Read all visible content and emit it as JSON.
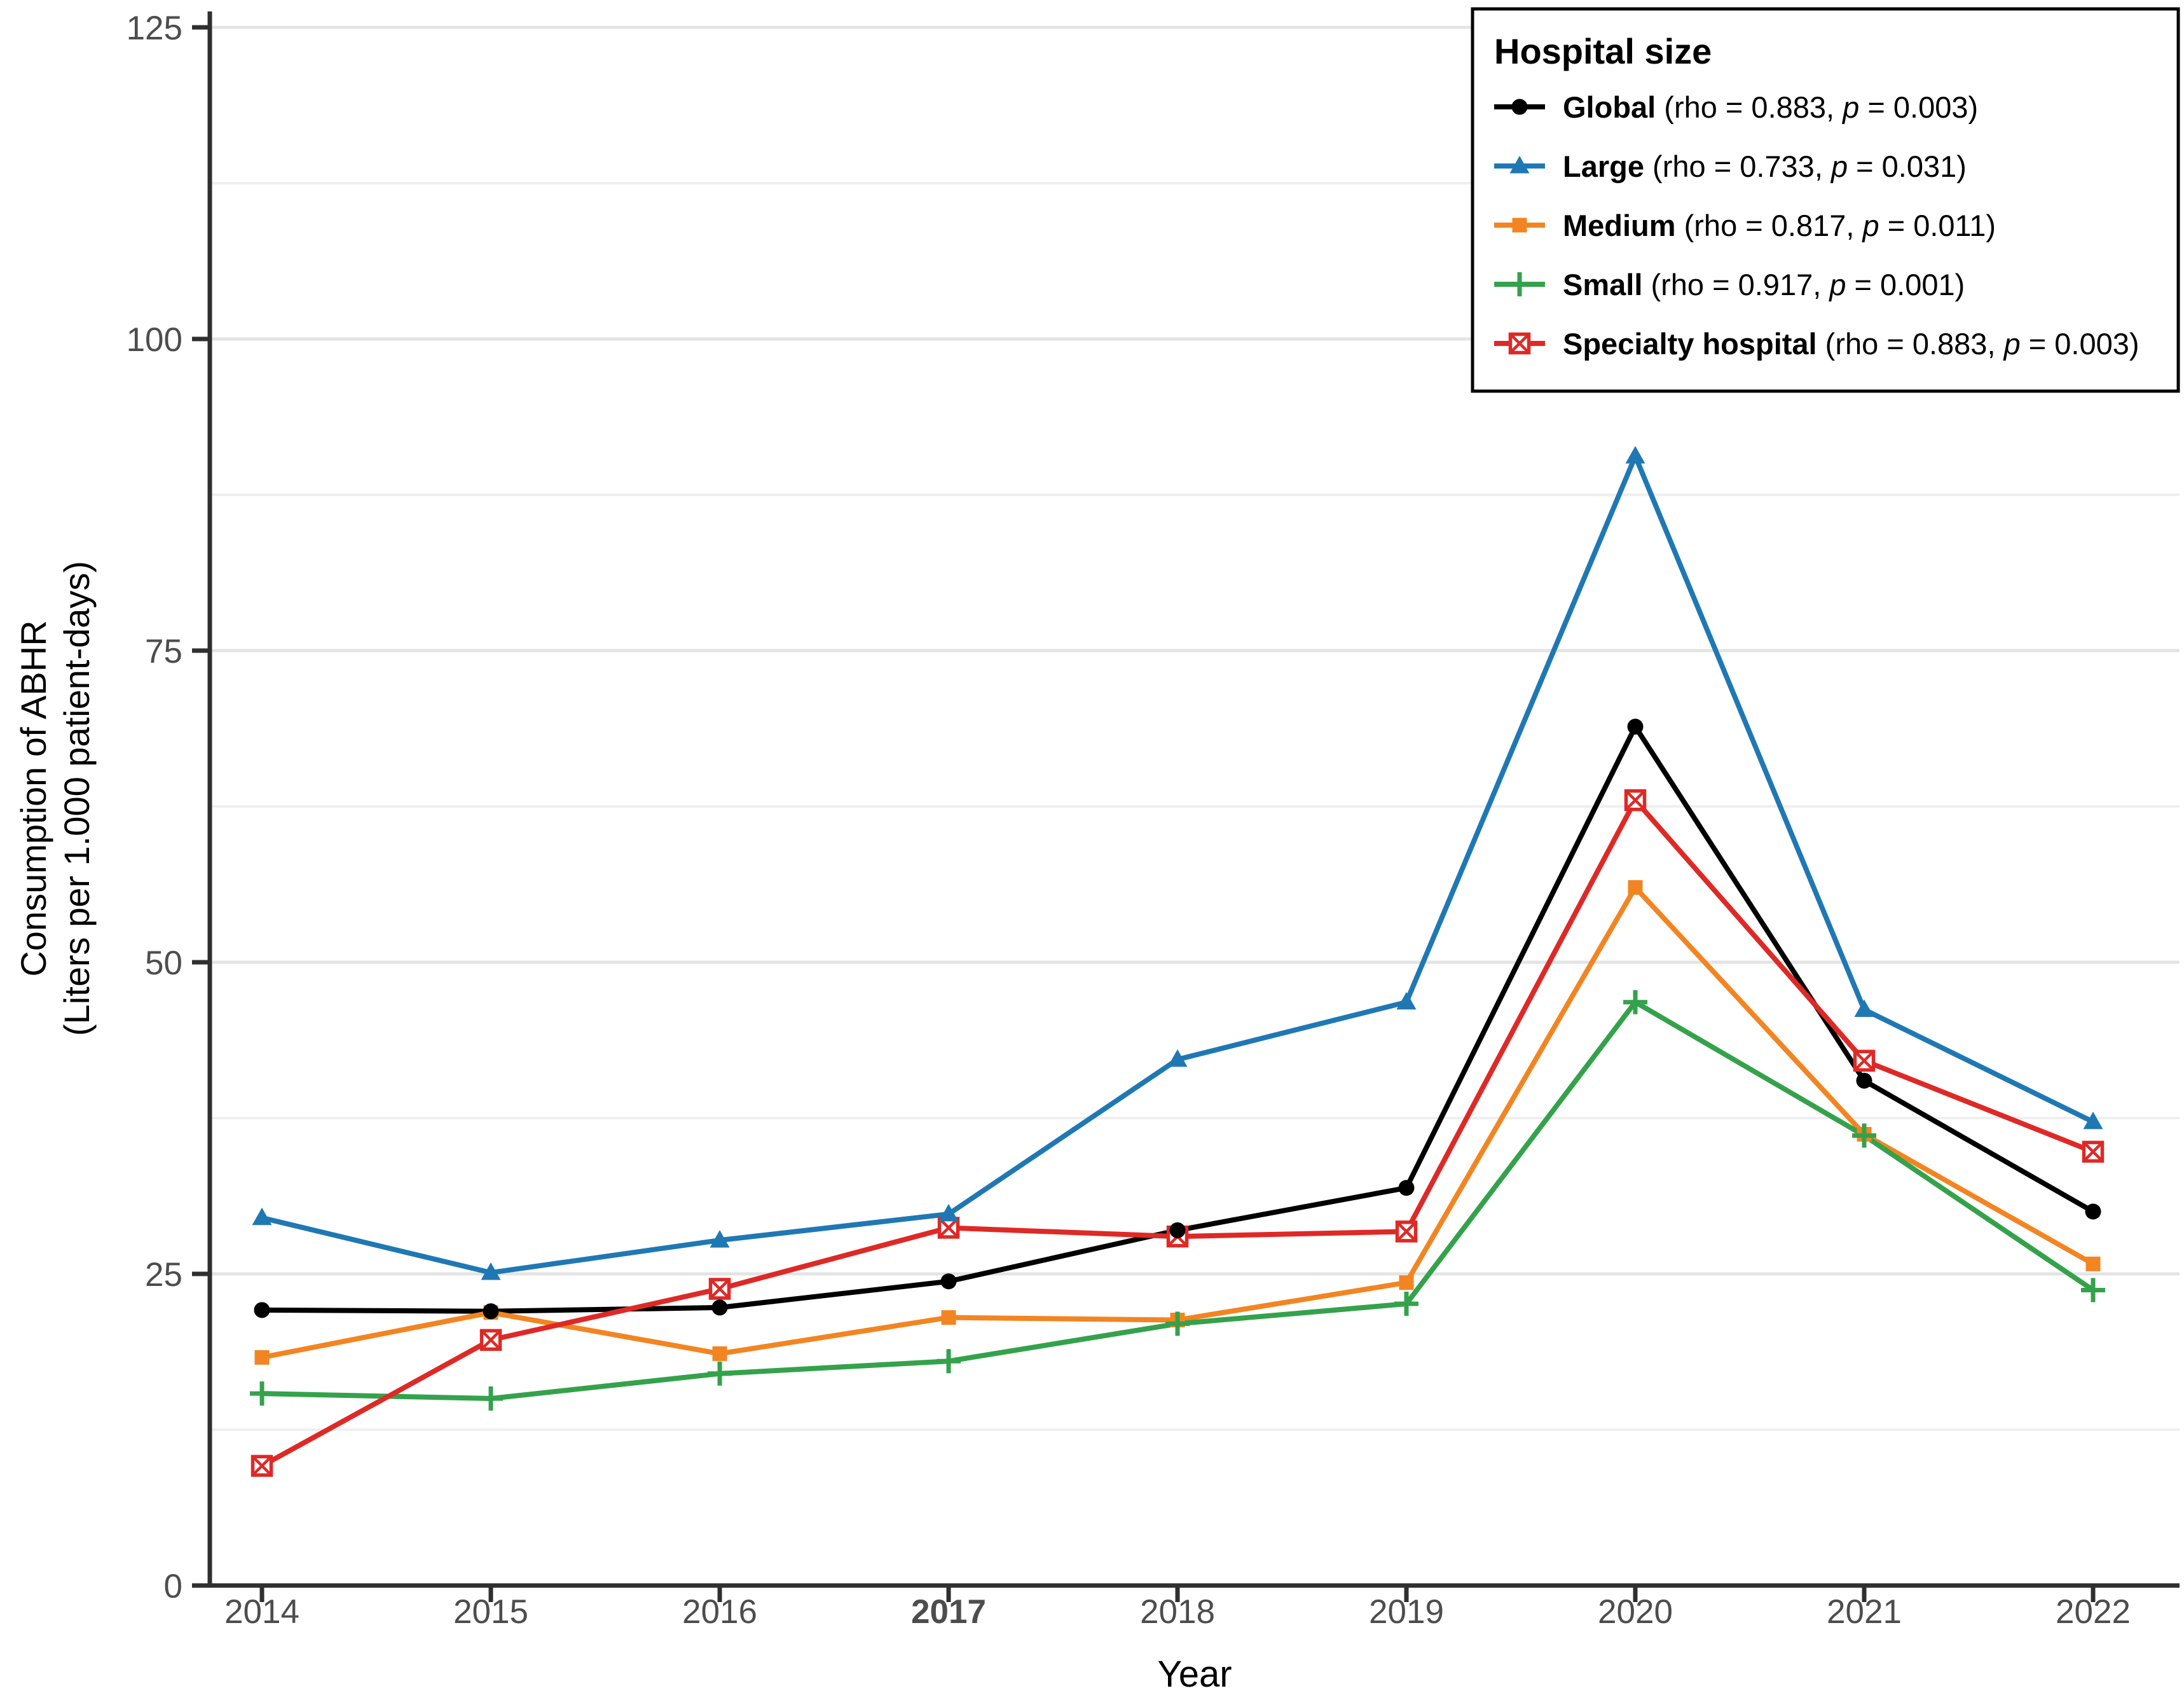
{
  "chart_data": {
    "type": "line",
    "title": "",
    "xlabel": "Year",
    "ylabel_line1": "Consumption of ABHR",
    "ylabel_line2": "(Liters per 1.000 patient-days)",
    "categories": [
      "2014",
      "2015",
      "2016",
      "2017",
      "2018",
      "2019",
      "2020",
      "2021",
      "2022"
    ],
    "bold_category": "2017",
    "ylim": [
      0,
      125
    ],
    "yticks": [
      0,
      25,
      50,
      75,
      100,
      125
    ],
    "yticks_minor": [
      12.5,
      37.5,
      62.5,
      87.5,
      112.5
    ],
    "grid": "horizontal-only",
    "legend_position": "top-right",
    "legend_title": "Hospital size",
    "legend_text_parts": {
      "open": " (rho = ",
      "comma": ", ",
      "p_symbol": "p",
      "equals": " = ",
      "close": ")"
    },
    "series": [
      {
        "id": "global",
        "name": "Global",
        "rho": "0.883",
        "p": "0.003",
        "color": "#000000",
        "marker": "circle",
        "values": [
          22.1,
          22.0,
          22.3,
          24.4,
          28.5,
          31.9,
          68.9,
          40.5,
          30.0
        ]
      },
      {
        "id": "large",
        "name": "Large",
        "rho": "0.733",
        "p": "0.031",
        "color": "#1F78B4",
        "marker": "triangle",
        "values": [
          29.5,
          25.1,
          27.7,
          29.8,
          42.2,
          46.8,
          90.6,
          46.2,
          37.2
        ]
      },
      {
        "id": "medium",
        "name": "Medium",
        "rho": "0.817",
        "p": "0.011",
        "color": "#F28522",
        "marker": "square",
        "values": [
          18.3,
          21.9,
          18.6,
          21.5,
          21.3,
          24.3,
          56.0,
          36.2,
          25.8
        ]
      },
      {
        "id": "small",
        "name": "Small",
        "rho": "0.917",
        "p": "0.001",
        "color": "#34A24B",
        "marker": "plus",
        "values": [
          15.4,
          15.0,
          17.0,
          18.0,
          21.0,
          22.6,
          46.8,
          36.1,
          23.7
        ]
      },
      {
        "id": "specialty",
        "name": "Specialty hospital",
        "rho": "0.883",
        "p": "0.003",
        "color": "#DE2926",
        "marker": "square-x",
        "values": [
          9.6,
          19.7,
          23.8,
          28.7,
          28.0,
          28.4,
          63.0,
          42.1,
          34.8
        ]
      }
    ],
    "colors": {
      "axis": "#2F2F2F",
      "tick_label": "#4D4D4D",
      "grid_major": "#E4E4E4",
      "grid_minor": "#EFEFEF",
      "legend_border": "#000000",
      "legend_bg": "#FFFFFF",
      "text": "#000000"
    }
  }
}
